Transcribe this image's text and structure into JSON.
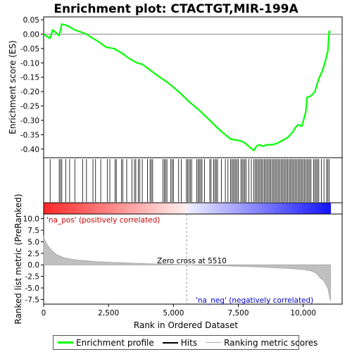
{
  "chart_data": {
    "type": "line",
    "title": "Enrichment plot: CTACTGT,MIR-199A",
    "top_panel": {
      "ylabel": "Enrichment score (ES)",
      "ylim": [
        -0.43,
        0.06
      ],
      "yticks": [
        "0.05",
        "0.00",
        "-0.05",
        "-0.10",
        "-0.15",
        "-0.20",
        "-0.25",
        "-0.30",
        "-0.35",
        "-0.40"
      ],
      "ytick_values": [
        0.05,
        0.0,
        -0.05,
        -0.1,
        -0.15,
        -0.2,
        -0.25,
        -0.3,
        -0.35,
        -0.4
      ],
      "series": [
        {
          "name": "Enrichment profile",
          "color": "#00ff00",
          "x": [
            0,
            250,
            350,
            600,
            700,
            900,
            1200,
            1500,
            1650,
            1900,
            2100,
            2400,
            2700,
            3000,
            3300,
            3600,
            3800,
            4100,
            4400,
            4800,
            5200,
            5600,
            6000,
            6400,
            6800,
            7200,
            7500,
            7700,
            7900,
            8100,
            8200,
            8300,
            8450,
            8600,
            8800,
            9000,
            9200,
            9400,
            9600,
            9700,
            9800,
            9950,
            10100,
            10150,
            10300,
            10450,
            10600,
            10750,
            10850,
            10950,
            11000,
            11050
          ],
          "y": [
            0.0,
            -0.015,
            0.015,
            -0.005,
            0.035,
            0.03,
            0.015,
            0.005,
            0.0,
            -0.015,
            -0.025,
            -0.045,
            -0.05,
            -0.065,
            -0.085,
            -0.1,
            -0.105,
            -0.125,
            -0.145,
            -0.17,
            -0.2,
            -0.235,
            -0.265,
            -0.3,
            -0.335,
            -0.365,
            -0.37,
            -0.375,
            -0.39,
            -0.405,
            -0.39,
            -0.385,
            -0.39,
            -0.385,
            -0.385,
            -0.38,
            -0.37,
            -0.36,
            -0.34,
            -0.325,
            -0.315,
            -0.32,
            -0.27,
            -0.22,
            -0.215,
            -0.2,
            -0.155,
            -0.125,
            -0.095,
            -0.06,
            0.01,
            0.005
          ]
        }
      ]
    },
    "hits_panel": {
      "legend_label": "Hits",
      "hits": [
        250,
        600,
        650,
        700,
        850,
        1000,
        1200,
        1500,
        1650,
        1900,
        2000,
        2200,
        2450,
        2550,
        2750,
        2800,
        3000,
        3050,
        3200,
        3400,
        3500,
        3550,
        3650,
        3700,
        3800,
        4000,
        4100,
        4150,
        4200,
        4600,
        4650,
        4700,
        4750,
        4900,
        4950,
        5000,
        5200,
        5300,
        5500,
        5550,
        5600,
        5650,
        5700,
        5900,
        5950,
        6000,
        6050,
        6100,
        6200,
        6400,
        6450,
        6550,
        6600,
        6650,
        6700,
        6850,
        7000,
        7100,
        7200,
        7250,
        7300,
        7350,
        7400,
        7450,
        7500,
        7600,
        7650,
        7700,
        7750,
        7800,
        7900,
        8000,
        8100,
        8150,
        8200,
        8250,
        8300,
        8350,
        8400,
        8450,
        8500,
        8550,
        8600,
        8650,
        8700,
        8750,
        8800,
        8850,
        8900,
        8950,
        9000,
        9050,
        9100,
        9150,
        9200,
        9250,
        9300,
        9350,
        9400,
        9450,
        9500,
        9550,
        9600,
        9650,
        9700,
        9750,
        9800,
        9850,
        9900,
        9950,
        10000,
        10050,
        10100,
        10150,
        10200,
        10250,
        10300,
        10400,
        10450,
        10500,
        10550,
        10600,
        10700,
        10800,
        10900,
        10950,
        11000
      ]
    },
    "ranking_panel": {
      "legend_label": "Ranking metric scores",
      "ylabel": "Ranked list metric (PreRanked)",
      "ylim": [
        -8.5,
        11
      ],
      "yticks": [
        "10.0",
        "7.5",
        "5.0",
        "2.5",
        "0.0",
        "-2.5",
        "-5.0",
        "-7.5"
      ],
      "ytick_values": [
        10.0,
        7.5,
        5.0,
        2.5,
        0.0,
        -2.5,
        -5.0,
        -7.5
      ],
      "x": [
        0,
        50,
        150,
        300,
        500,
        800,
        1200,
        2000,
        3000,
        4000,
        5000,
        5510,
        6500,
        7500,
        8500,
        9500,
        10000,
        10300,
        10500,
        10650,
        10800,
        10950,
        11050
      ],
      "y": [
        6.3,
        5.2,
        4.2,
        3.2,
        2.2,
        1.5,
        1.1,
        0.7,
        0.45,
        0.25,
        0.1,
        0.0,
        -0.15,
        -0.3,
        -0.5,
        -0.8,
        -1.0,
        -1.3,
        -1.8,
        -2.8,
        -3.5,
        -5.0,
        -7.8
      ],
      "zero_cross_label": "Zero cross at 5510",
      "zero_cross": 5510,
      "pos_label": "'na_pos' (positively correlated)",
      "neg_label": "'na_neg' (negatively correlated)"
    },
    "x_axis": {
      "xlabel": "Rank in Ordered Dataset",
      "xlim": [
        0,
        11500
      ],
      "xticks": [
        "0",
        "2,500",
        "5,000",
        "7,500",
        "10,000"
      ],
      "xtick_values": [
        0,
        2500,
        5000,
        7500,
        10000
      ],
      "n_genes": 11050
    },
    "colors": {
      "profile": "#00ff00",
      "hit": "#000000",
      "ranking_fill": "#c0c0c0",
      "pos_text": "#cc0000",
      "neg_text": "#0000cc",
      "bar_pos": "#ff0000",
      "bar_neg": "#0000ff"
    }
  },
  "legend": {
    "profile": "Enrichment profile",
    "hits": "Hits",
    "ranking": "Ranking metric scores"
  }
}
